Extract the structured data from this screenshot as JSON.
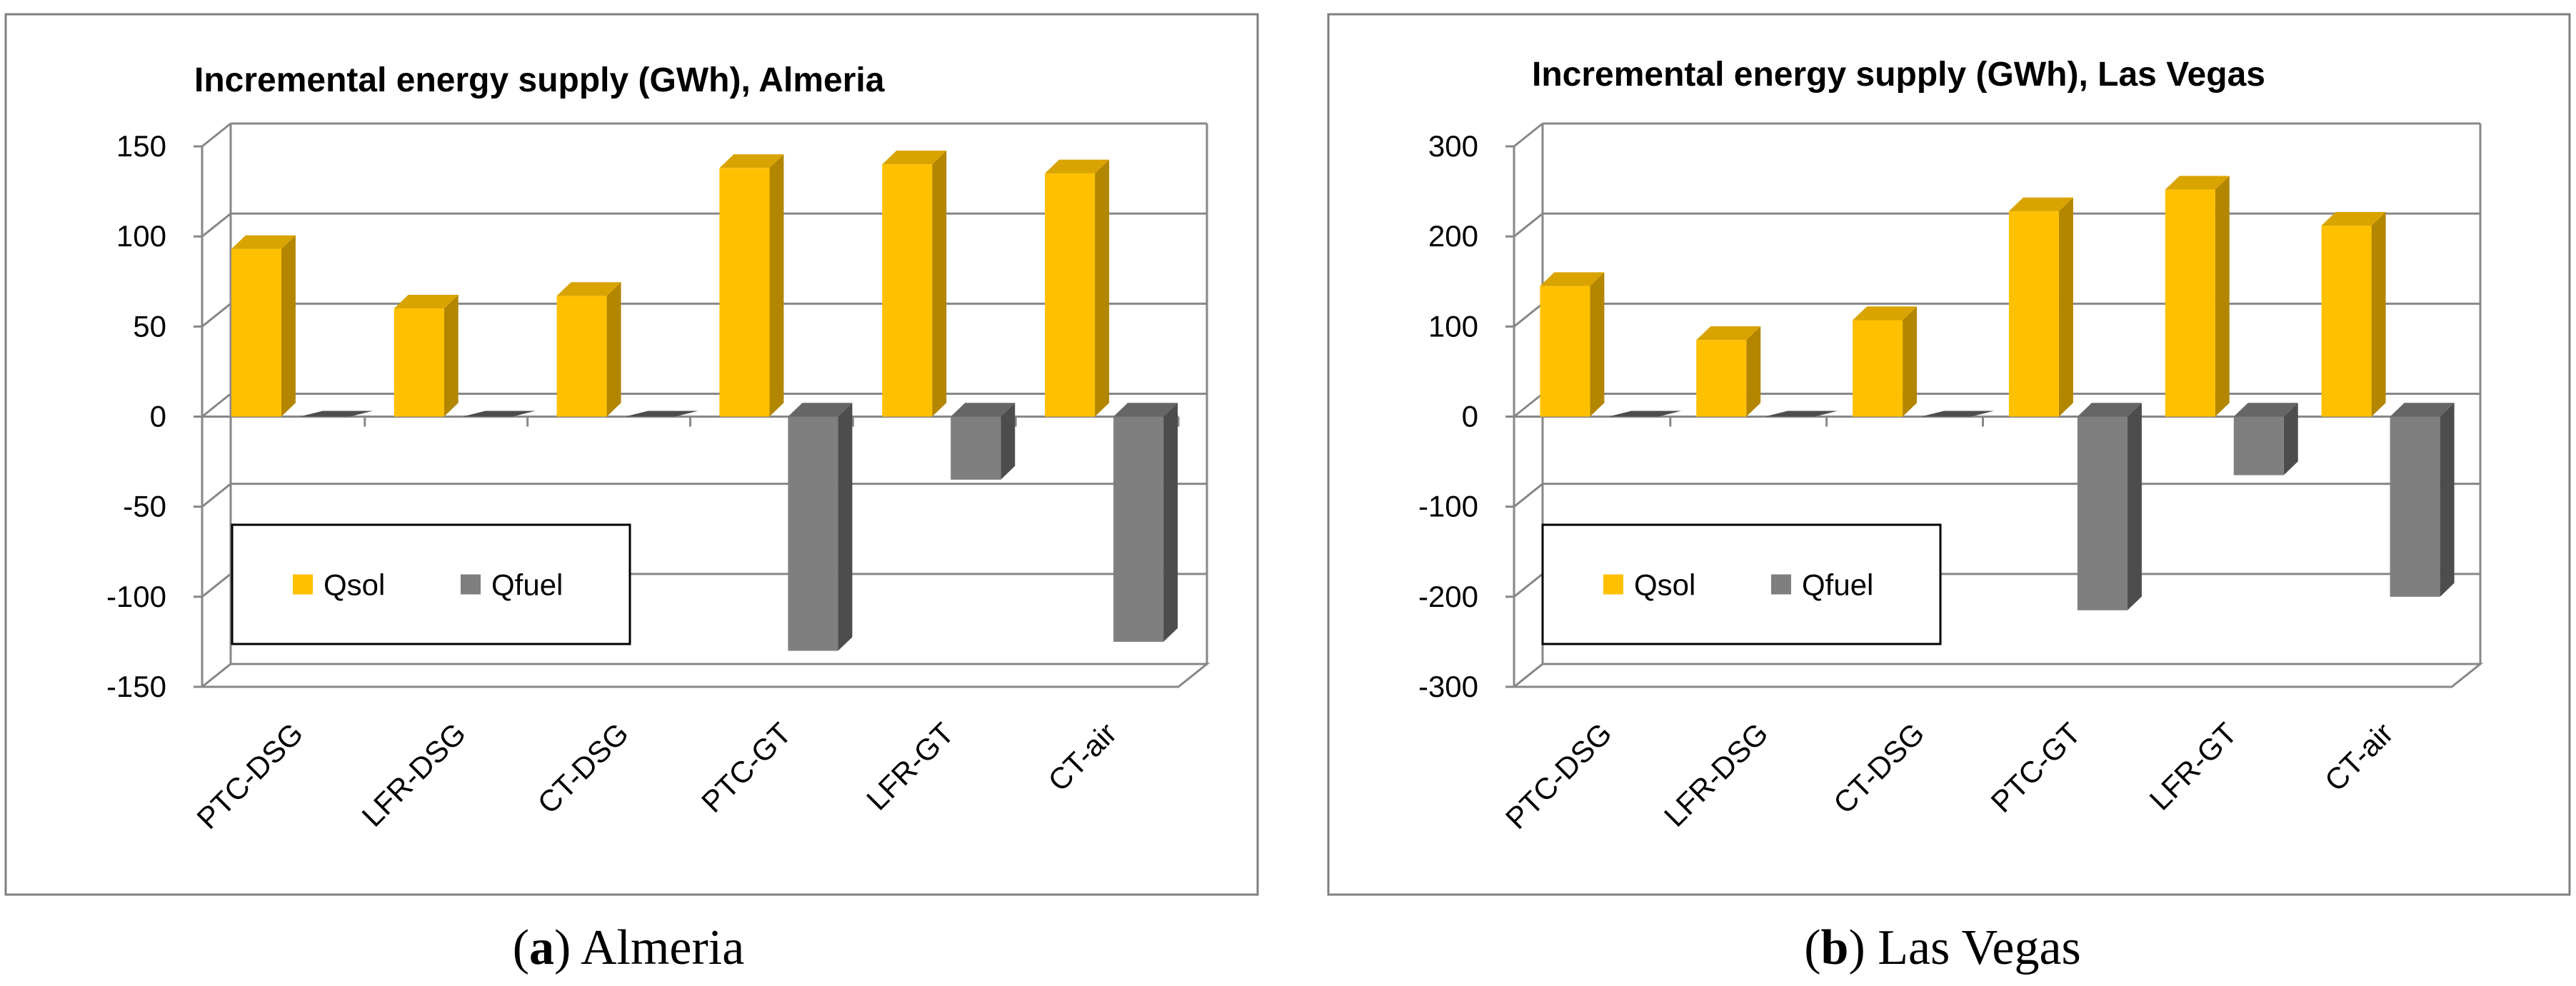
{
  "colors": {
    "qsol_front": "#FFC000",
    "qsol_side": "#B38600",
    "qsol_top": "#D9A300",
    "qfuel_front": "#7F7F7F",
    "qfuel_side": "#4D4D4D",
    "qfuel_top": "#666666",
    "grid": "#878787",
    "frame": "#7F7F7F"
  },
  "chart_data": [
    {
      "type": "bar",
      "title": "Incremental energy supply (GWh), Almeria",
      "caption_letter": "a",
      "caption_text": " Almeria",
      "categories": [
        "PTC-DSG",
        "LFR-DSG",
        "CT-DSG",
        "PTC-GT",
        "LFR-GT",
        "CT-air"
      ],
      "series": [
        {
          "name": "Qsol",
          "values": [
            93,
            60,
            67,
            138,
            140,
            135
          ]
        },
        {
          "name": "Qfuel",
          "values": [
            0,
            0,
            0,
            -130,
            -35,
            -125
          ]
        }
      ],
      "ylim": [
        -150,
        150
      ],
      "yticks": [
        150,
        100,
        50,
        0,
        -50,
        -100,
        -150
      ],
      "grid": true,
      "legend": "bottom-left",
      "view": "3d-clustered-column"
    },
    {
      "type": "bar",
      "title": "Incremental energy supply (GWh), Las Vegas",
      "caption_letter": "b",
      "caption_text": " Las Vegas",
      "categories": [
        "PTC-DSG",
        "LFR-DSG",
        "CT-DSG",
        "PTC-GT",
        "LFR-GT",
        "CT-air"
      ],
      "series": [
        {
          "name": "Qsol",
          "values": [
            145,
            85,
            107,
            228,
            252,
            212
          ]
        },
        {
          "name": "Qfuel",
          "values": [
            0,
            0,
            0,
            -215,
            -65,
            -200
          ]
        }
      ],
      "ylim": [
        -300,
        300
      ],
      "yticks": [
        300,
        200,
        100,
        0,
        -100,
        -200,
        -300
      ],
      "grid": true,
      "legend": "bottom-left",
      "view": "3d-clustered-column"
    }
  ]
}
